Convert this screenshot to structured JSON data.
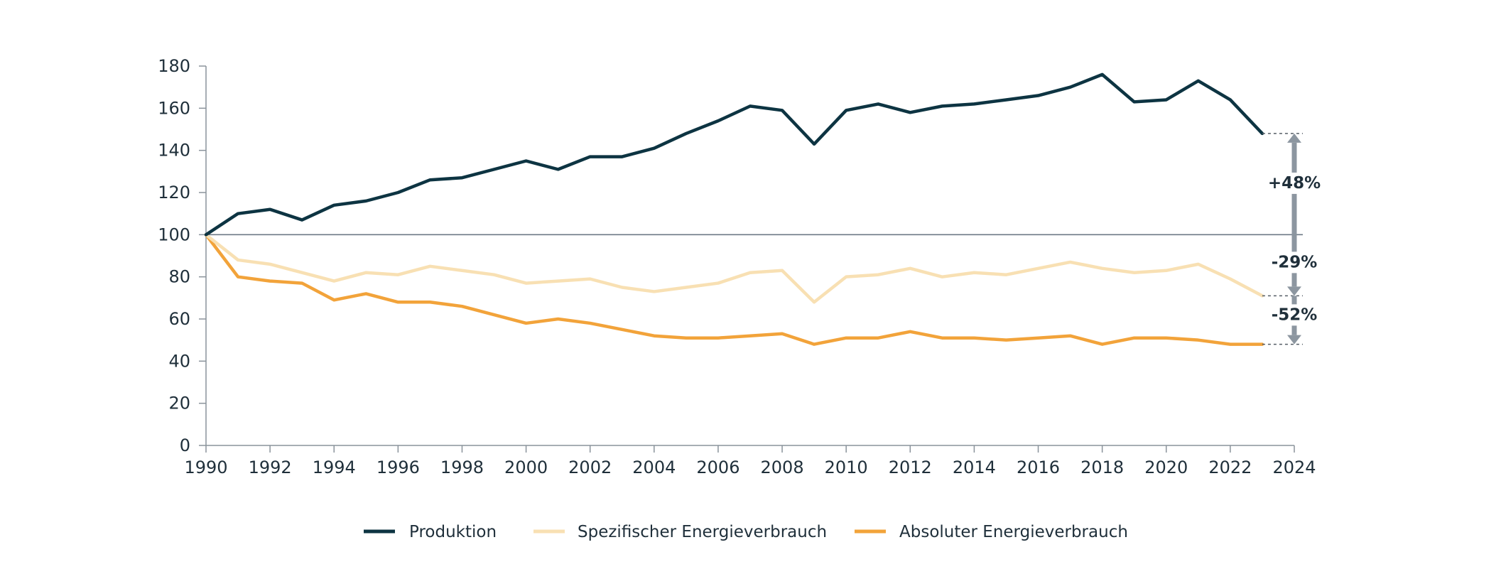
{
  "chart_data": {
    "type": "line",
    "title": "",
    "xlabel": "",
    "ylabel": "",
    "xlim": [
      1990,
      2024
    ],
    "ylim": [
      0,
      180
    ],
    "x_ticks": [
      1990,
      1992,
      1994,
      1996,
      1998,
      2000,
      2002,
      2004,
      2006,
      2008,
      2010,
      2012,
      2014,
      2016,
      2018,
      2020,
      2022,
      2024
    ],
    "y_ticks": [
      0,
      20,
      40,
      60,
      80,
      100,
      120,
      140,
      160,
      180
    ],
    "x": [
      1990,
      1991,
      1992,
      1993,
      1994,
      1995,
      1996,
      1997,
      1998,
      1999,
      2000,
      2001,
      2002,
      2003,
      2004,
      2005,
      2006,
      2007,
      2008,
      2009,
      2010,
      2011,
      2012,
      2013,
      2014,
      2015,
      2016,
      2017,
      2018,
      2019,
      2020,
      2021,
      2022,
      2023
    ],
    "reference_line": 100,
    "legend_position": "bottom",
    "series": [
      {
        "name": "Produktion",
        "color": "#0d3442",
        "values": [
          100,
          110,
          112,
          107,
          114,
          116,
          120,
          126,
          127,
          131,
          135,
          131,
          137,
          137,
          141,
          148,
          154,
          161,
          159,
          143,
          159,
          162,
          158,
          161,
          162,
          164,
          166,
          170,
          176,
          163,
          164,
          173,
          164,
          148
        ]
      },
      {
        "name": "Spezifischer Energieverbrauch",
        "color": "#f8e0b3",
        "values": [
          100,
          88,
          86,
          82,
          78,
          82,
          81,
          85,
          83,
          81,
          77,
          78,
          79,
          75,
          73,
          75,
          77,
          82,
          83,
          68,
          80,
          81,
          84,
          80,
          82,
          81,
          84,
          87,
          84,
          82,
          83,
          86,
          79,
          71
        ]
      },
      {
        "name": "Absoluter Energieverbrauch",
        "color": "#f2a33a",
        "values": [
          100,
          80,
          78,
          77,
          69,
          72,
          68,
          68,
          66,
          62,
          58,
          60,
          58,
          55,
          52,
          51,
          51,
          52,
          53,
          48,
          51,
          51,
          54,
          51,
          51,
          50,
          51,
          52,
          48,
          51,
          51,
          50,
          48,
          48
        ]
      }
    ],
    "annotations": [
      {
        "label": "+48%",
        "from": 100,
        "to": 148
      },
      {
        "label": "-29%",
        "from": 100,
        "to": 71
      },
      {
        "label": "-52%",
        "from": 71,
        "to": 48
      }
    ]
  },
  "colors": {
    "axis": "#8a939b",
    "reference": "#6d7a85",
    "arrow": "#8c96a0",
    "text": "#1f2f3a"
  }
}
